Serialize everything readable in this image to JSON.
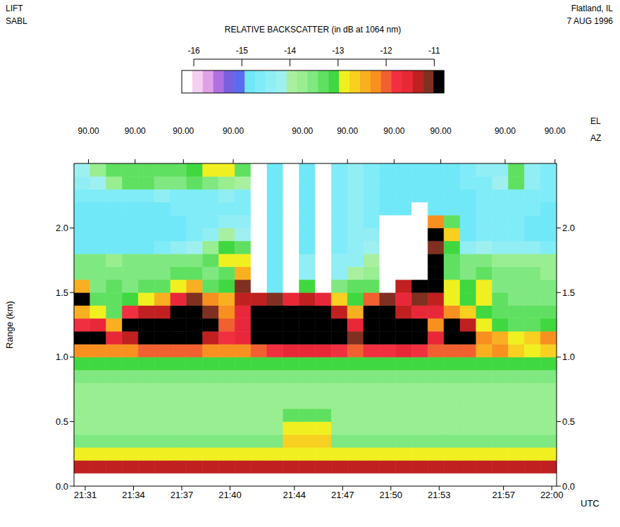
{
  "chart_data": {
    "type": "heatmap",
    "title": "RELATIVE BACKSCATTER (in dB at 1064 nm)",
    "header_left": [
      "LIFT",
      "SABL"
    ],
    "header_right": [
      "Flatland, IL",
      "7 AUG 1996"
    ],
    "x_label": "UTC",
    "y_label": "Range (km)",
    "xlim": [
      30.3,
      60.3
    ],
    "xticks": [
      {
        "value": 31,
        "label": "21:31"
      },
      {
        "value": 34,
        "label": "21:34"
      },
      {
        "value": 37,
        "label": "21:37"
      },
      {
        "value": 40,
        "label": "21:40"
      },
      {
        "value": 44,
        "label": "21:44"
      },
      {
        "value": 47,
        "label": "21:47"
      },
      {
        "value": 50,
        "label": "21:50"
      },
      {
        "value": 53,
        "label": "21:53"
      },
      {
        "value": 57,
        "label": "21:57"
      },
      {
        "value": 60,
        "label": "22:00"
      }
    ],
    "ylim": [
      0,
      2.5
    ],
    "yticks": [
      {
        "value": 0,
        "label": "0.0"
      },
      {
        "value": 0.5,
        "label": "0.5"
      },
      {
        "value": 1,
        "label": "1.0"
      },
      {
        "value": 1.5,
        "label": "1.5"
      },
      {
        "value": 2,
        "label": "2.0"
      }
    ],
    "top_axis": {
      "labels": [
        "EL",
        "AZ"
      ],
      "ticks": [
        {
          "value": 31.2,
          "label": "90.00"
        },
        {
          "value": 34.1,
          "label": "90.00"
        },
        {
          "value": 37.1,
          "label": "90.00"
        },
        {
          "value": 40.2,
          "label": "90.00"
        },
        {
          "value": 44.5,
          "label": "90.00"
        },
        {
          "value": 47.3,
          "label": "90.00"
        },
        {
          "value": 50.2,
          "label": "90.00"
        },
        {
          "value": 53.1,
          "label": "90.00"
        },
        {
          "value": 57.1,
          "label": "90.00"
        },
        {
          "value": 60.2,
          "label": "90.00"
        }
      ]
    },
    "x_bins": [
      30.3,
      31.3,
      32.3,
      33.3,
      34.3,
      35.3,
      36.3,
      37.3,
      38.3,
      39.3,
      40.3,
      41.3,
      42.3,
      43.3,
      44.3,
      45.3,
      46.3,
      47.3,
      48.3,
      49.3,
      50.3,
      51.3,
      52.3,
      53.3,
      54.3,
      55.3,
      56.3,
      57.3,
      58.3,
      59.3,
      60.3
    ],
    "y_bins": [
      0,
      0.1,
      0.2,
      0.3,
      0.4,
      0.5,
      0.6,
      0.7,
      0.8,
      0.9,
      1.0,
      1.1,
      1.2,
      1.3,
      1.4,
      1.5,
      1.6,
      1.7,
      1.8,
      1.9,
      2.0,
      2.1,
      2.2,
      2.3,
      2.4,
      2.5
    ],
    "cells": [
      [
        -16.2,
        -16.2,
        -16.2,
        -16.2,
        -16.2,
        -16.2,
        -16.2,
        -16.2,
        -16.2,
        -16.2,
        -16.2,
        -16.2,
        -16.2,
        -16.2,
        -16.2,
        -16.2,
        -16.2,
        -16.2,
        -16.2,
        -16.2,
        -16.2,
        -16.2,
        -16.2,
        -16.2,
        -16.2,
        -16.2,
        -16.2,
        -16.2,
        -16.2,
        -16.2
      ],
      [
        -11.3,
        -11.3,
        -11.3,
        -11.3,
        -11.3,
        -11.3,
        -11.3,
        -11.3,
        -11.3,
        -11.3,
        -11.3,
        -11.3,
        -11.3,
        -11.3,
        -11.3,
        -11.3,
        -11.3,
        -11.3,
        -11.3,
        -11.3,
        -11.3,
        -11.3,
        -11.3,
        -11.3,
        -11.3,
        -11.3,
        -11.3,
        -11.3,
        -11.3,
        -11.3
      ],
      [
        -12.8,
        -12.8,
        -12.8,
        -12.8,
        -12.8,
        -12.8,
        -12.8,
        -12.8,
        -12.8,
        -12.8,
        -12.8,
        -12.8,
        -12.8,
        -12.8,
        -12.8,
        -12.8,
        -12.8,
        -12.8,
        -12.8,
        -12.8,
        -12.8,
        -12.8,
        -12.8,
        -12.8,
        -12.8,
        -12.8,
        -12.8,
        -12.8,
        -12.8,
        -12.8
      ],
      [
        -13.5,
        -13.5,
        -13.5,
        -13.5,
        -13.5,
        -13.5,
        -13.5,
        -13.5,
        -13.5,
        -13.5,
        -13.5,
        -13.5,
        -13.5,
        -12.6,
        -12.6,
        -12.6,
        -13.5,
        -13.5,
        -13.5,
        -13.5,
        -13.5,
        -13.5,
        -13.5,
        -13.5,
        -13.5,
        -13.5,
        -13.5,
        -13.5,
        -13.5,
        -13.5
      ],
      [
        -13.7,
        -13.7,
        -13.7,
        -13.7,
        -13.7,
        -13.7,
        -13.7,
        -13.7,
        -13.7,
        -13.7,
        -13.7,
        -13.7,
        -13.7,
        -12.8,
        -12.8,
        -12.8,
        -13.7,
        -13.7,
        -13.7,
        -13.7,
        -13.7,
        -13.7,
        -13.7,
        -13.7,
        -13.7,
        -13.7,
        -13.7,
        -13.7,
        -13.7,
        -13.7
      ],
      [
        -13.7,
        -13.7,
        -13.7,
        -13.7,
        -13.7,
        -13.7,
        -13.7,
        -13.7,
        -13.7,
        -13.7,
        -13.7,
        -13.7,
        -13.7,
        -13.2,
        -13.2,
        -13.2,
        -13.7,
        -13.7,
        -13.7,
        -13.7,
        -13.7,
        -13.7,
        -13.7,
        -13.7,
        -13.7,
        -13.7,
        -13.7,
        -13.7,
        -13.7,
        -13.7
      ],
      [
        -13.7,
        -13.7,
        -13.7,
        -13.7,
        -13.7,
        -13.7,
        -13.7,
        -13.7,
        -13.7,
        -13.7,
        -13.7,
        -13.7,
        -13.7,
        -13.7,
        -13.7,
        -13.7,
        -13.7,
        -13.7,
        -13.7,
        -13.7,
        -13.7,
        -13.7,
        -13.7,
        -13.7,
        -13.7,
        -13.7,
        -13.7,
        -13.7,
        -13.7,
        -13.7
      ],
      [
        -13.7,
        -13.7,
        -13.7,
        -13.7,
        -13.7,
        -13.7,
        -13.7,
        -13.7,
        -13.7,
        -13.7,
        -13.7,
        -13.7,
        -13.7,
        -13.7,
        -13.7,
        -13.7,
        -13.7,
        -13.7,
        -13.7,
        -13.7,
        -13.7,
        -13.7,
        -13.7,
        -13.7,
        -13.7,
        -13.7,
        -13.7,
        -13.7,
        -13.7,
        -13.7
      ],
      [
        -13.6,
        -13.6,
        -13.6,
        -13.6,
        -13.6,
        -13.6,
        -13.6,
        -13.6,
        -13.6,
        -13.6,
        -13.6,
        -13.6,
        -13.6,
        -13.6,
        -13.6,
        -13.6,
        -13.6,
        -13.6,
        -13.6,
        -13.6,
        -13.6,
        -13.6,
        -13.6,
        -13.6,
        -13.6,
        -13.6,
        -13.6,
        -13.6,
        -13.6,
        -13.6
      ],
      [
        -13.1,
        -13.1,
        -13.1,
        -13.1,
        -13.1,
        -13.1,
        -13.1,
        -13.1,
        -13.1,
        -13.1,
        -13.1,
        -13.1,
        -13.1,
        -13.1,
        -13.1,
        -13.1,
        -13.1,
        -13.1,
        -13.1,
        -13.1,
        -13.1,
        -13.1,
        -13.1,
        -13.1,
        -13.1,
        -13.1,
        -13.1,
        -13.1,
        -13.1,
        -13.1
      ],
      [
        -12.3,
        -12.3,
        -12.2,
        -12.3,
        -12.0,
        -12.0,
        -12.0,
        -12.0,
        -12.2,
        -12.3,
        -12.2,
        -12.0,
        -11.8,
        -11.6,
        -11.5,
        -11.6,
        -11.8,
        -12.0,
        -11.8,
        -11.8,
        -11.6,
        -11.8,
        -12.0,
        -12.0,
        -12.0,
        -12.4,
        -12.3,
        -12.6,
        -12.8,
        -12.6
      ],
      [
        -11.0,
        -11.0,
        -11.6,
        -11.3,
        -10.9,
        -10.9,
        -10.9,
        -11.0,
        -11.4,
        -11.8,
        -11.6,
        -10.9,
        -10.9,
        -10.9,
        -10.9,
        -10.9,
        -10.9,
        -11.2,
        -10.9,
        -10.9,
        -10.9,
        -10.9,
        -11.6,
        -11.0,
        -11.0,
        -12.3,
        -12.5,
        -12.8,
        -12.6,
        -12.3
      ],
      [
        -11.8,
        -11.5,
        -12.4,
        -11.0,
        -10.9,
        -11.0,
        -10.9,
        -10.9,
        -11.0,
        -12.0,
        -11.5,
        -10.9,
        -10.9,
        -10.9,
        -10.9,
        -10.9,
        -10.9,
        -11.6,
        -11.0,
        -10.9,
        -10.9,
        -10.9,
        -12.2,
        -11.0,
        -11.3,
        -12.8,
        -13.0,
        -13.2,
        -13.2,
        -13.0
      ],
      [
        -12.4,
        -12.8,
        -13.3,
        -11.8,
        -11.4,
        -11.3,
        -11.0,
        -11.0,
        -11.2,
        -12.2,
        -11.6,
        -11.0,
        -10.9,
        -10.9,
        -10.9,
        -10.9,
        -11.3,
        -12.5,
        -11.0,
        -10.9,
        -11.3,
        -11.6,
        -11.6,
        -12.2,
        -12.6,
        -13.0,
        -13.2,
        -13.4,
        -13.2,
        -13.3
      ],
      [
        -11.0,
        -13.3,
        -13.3,
        -13.0,
        -12.8,
        -12.5,
        -11.6,
        -11.2,
        -12.2,
        -12.4,
        -11.4,
        -11.3,
        -11.2,
        -11.5,
        -11.3,
        -11.6,
        -12.6,
        -13.0,
        -12.0,
        -11.2,
        -11.6,
        -11.2,
        -11.3,
        -12.8,
        -13.0,
        -12.8,
        -13.4,
        -13.5,
        -13.5,
        -13.5
      ],
      [
        -12.5,
        -13.5,
        -13.4,
        -13.5,
        -13.4,
        -13.4,
        -12.8,
        -12.5,
        -13.2,
        -13.0,
        -11.2,
        -16.1,
        -14.9,
        -16.1,
        -13.0,
        -16.1,
        -13.5,
        -13.4,
        -13.2,
        -16.1,
        -11.4,
        -11.0,
        -11.0,
        -12.8,
        -13.0,
        -12.8,
        -13.5,
        -13.5,
        -13.6,
        -13.6
      ],
      [
        -13.5,
        -13.6,
        -13.5,
        -13.6,
        -13.5,
        -13.5,
        -13.4,
        -13.4,
        -13.5,
        -13.3,
        -12.4,
        -16.1,
        -14.9,
        -16.1,
        -14.5,
        -16.1,
        -14.3,
        -14.0,
        -13.8,
        -16.1,
        -16.1,
        -16.1,
        -11.0,
        -13.2,
        -13.5,
        -13.4,
        -13.6,
        -13.6,
        -13.6,
        -13.7
      ],
      [
        -13.6,
        -13.6,
        -13.7,
        -13.6,
        -13.6,
        -13.6,
        -13.6,
        -13.5,
        -13.4,
        -12.8,
        -12.9,
        -16.1,
        -14.9,
        -16.1,
        -14.5,
        -16.1,
        -14.3,
        -14.3,
        -14.0,
        -16.1,
        -16.1,
        -16.1,
        -11.0,
        -13.2,
        -13.5,
        -13.6,
        -13.7,
        -13.7,
        -13.7,
        -13.8
      ],
      [
        -14.8,
        -14.9,
        -14.9,
        -14.9,
        -14.8,
        -14.7,
        -14.5,
        -14.2,
        -13.8,
        -13.0,
        -13.2,
        -16.1,
        -14.9,
        -16.1,
        -14.8,
        -16.1,
        -14.7,
        -14.3,
        -14.2,
        -16.1,
        -16.1,
        -16.1,
        -11.1,
        -13.0,
        -14.5,
        -14.2,
        -14.3,
        -14.4,
        -14.5,
        -14.6
      ],
      [
        -14.9,
        -14.9,
        -14.9,
        -14.9,
        -14.9,
        -14.8,
        -14.8,
        -14.6,
        -14.3,
        -14.0,
        -14.2,
        -16.1,
        -14.9,
        -16.1,
        -14.8,
        -16.1,
        -14.7,
        -14.3,
        -14.5,
        -16.1,
        -16.1,
        -16.1,
        -11.0,
        -12.6,
        -14.8,
        -14.7,
        -14.6,
        -14.7,
        -14.8,
        -14.8
      ],
      [
        -14.9,
        -14.9,
        -14.9,
        -14.9,
        -14.9,
        -14.8,
        -14.8,
        -14.7,
        -14.6,
        -14.4,
        -14.5,
        -16.1,
        -14.9,
        -16.1,
        -14.8,
        -16.1,
        -14.7,
        -14.4,
        -14.6,
        -16.1,
        -16.1,
        -16.1,
        -12.2,
        -13.4,
        -14.8,
        -14.7,
        -14.7,
        -14.7,
        -14.8,
        -14.8
      ],
      [
        -14.8,
        -14.8,
        -14.8,
        -14.8,
        -14.8,
        -14.8,
        -14.7,
        -14.7,
        -14.7,
        -14.6,
        -14.7,
        -16.1,
        -14.9,
        -16.1,
        -14.8,
        -16.1,
        -14.7,
        -14.4,
        -14.6,
        -14.9,
        -14.9,
        -16.1,
        -14.9,
        -14.8,
        -14.8,
        -14.7,
        -14.7,
        -14.7,
        -14.7,
        -14.8
      ],
      [
        -14.7,
        -14.7,
        -14.7,
        -14.6,
        -14.6,
        -14.5,
        -14.6,
        -14.6,
        -14.6,
        -14.5,
        -14.6,
        -16.1,
        -14.9,
        -16.1,
        -14.8,
        -16.1,
        -14.7,
        -14.4,
        -14.6,
        -14.9,
        -14.9,
        -14.9,
        -14.9,
        -14.8,
        -14.8,
        -14.7,
        -14.6,
        -14.6,
        -14.7,
        -14.7
      ],
      [
        -14.4,
        -14.2,
        -13.8,
        -13.2,
        -13.4,
        -13.5,
        -13.6,
        -13.4,
        -13.6,
        -13.8,
        -14.0,
        -16.1,
        -14.9,
        -16.1,
        -14.8,
        -16.1,
        -14.7,
        -14.4,
        -14.6,
        -14.9,
        -14.9,
        -14.9,
        -14.9,
        -14.8,
        -14.6,
        -14.6,
        -14.2,
        -13.2,
        -14.4,
        -14.6
      ],
      [
        -14.2,
        -13.8,
        -13.4,
        -13.4,
        -13.2,
        -13.4,
        -13.3,
        -13.0,
        -12.8,
        -12.8,
        -13.2,
        -16.1,
        -14.9,
        -16.1,
        -14.8,
        -16.1,
        -14.7,
        -14.4,
        -14.6,
        -14.9,
        -14.9,
        -14.9,
        -14.9,
        -14.8,
        -14.6,
        -14.5,
        -14.4,
        -13.4,
        -14.4,
        -14.6
      ]
    ],
    "colorbar": {
      "range": [
        -16.25,
        -10.8
      ],
      "ticks": [
        -16,
        -15,
        -14,
        -13,
        -12,
        -11
      ]
    }
  }
}
